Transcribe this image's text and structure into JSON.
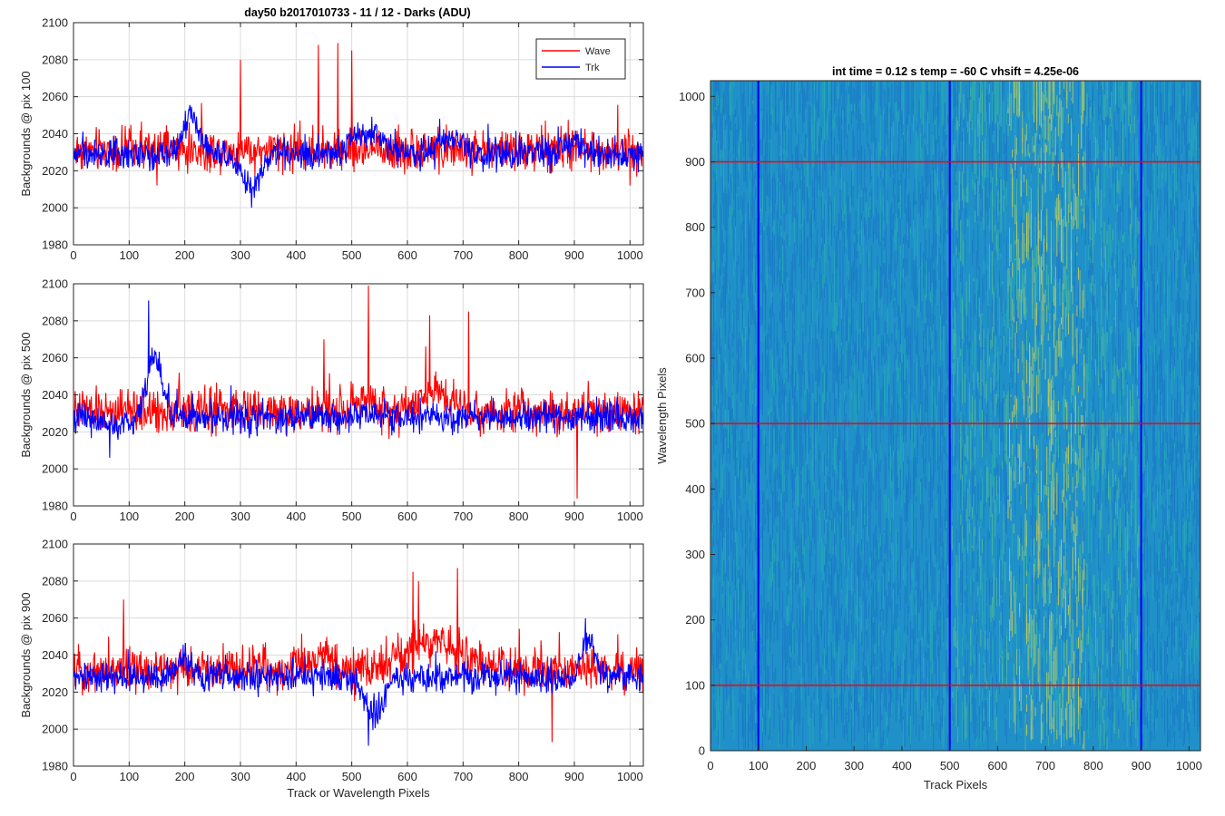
{
  "figure": {
    "title": "day50 b2017010733 - 11 / 12 - Darks (ADU)"
  },
  "chart_data": [
    {
      "type": "line",
      "id": "panel-1",
      "ylabel": "Backgrounds @ pix 100",
      "xlabel": "",
      "xlim": [
        0,
        1024
      ],
      "ylim": [
        1980,
        2100
      ],
      "xticks": [
        0,
        100,
        200,
        300,
        400,
        500,
        600,
        700,
        800,
        900,
        1000
      ],
      "yticks": [
        1980,
        2000,
        2020,
        2040,
        2060,
        2080,
        2100
      ],
      "grid": true,
      "legend": {
        "position": "top-right",
        "entries": [
          "Wave",
          "Trk"
        ]
      },
      "series": [
        {
          "name": "Wave",
          "color": "#ff0000",
          "baseline": 2031,
          "noise": 7,
          "bumps": [],
          "spikes": [
            [
              440,
              2088
            ],
            [
              475,
              2089
            ],
            [
              500,
              2085
            ],
            [
              300,
              2080
            ]
          ],
          "dips": [
            [
              150,
              2012
            ],
            [
              1000,
              2012
            ]
          ]
        },
        {
          "name": "Trk",
          "color": "#0000ff",
          "baseline": 2029,
          "noise": 5,
          "bumps": [
            [
              210,
              20,
              22
            ],
            [
              320,
              25,
              -18
            ],
            [
              530,
              40,
              12
            ],
            [
              680,
              30,
              8
            ],
            [
              900,
              20,
              8
            ]
          ],
          "spikes": [],
          "dips": [
            [
              320,
              2000
            ]
          ]
        }
      ]
    },
    {
      "type": "line",
      "id": "panel-2",
      "ylabel": "Backgrounds @ pix 500",
      "xlabel": "",
      "xlim": [
        0,
        1024
      ],
      "ylim": [
        1980,
        2100
      ],
      "xticks": [
        0,
        100,
        200,
        300,
        400,
        500,
        600,
        700,
        800,
        900,
        1000
      ],
      "yticks": [
        1980,
        2000,
        2020,
        2040,
        2060,
        2080,
        2100
      ],
      "grid": true,
      "series": [
        {
          "name": "Wave",
          "color": "#ff0000",
          "baseline": 2031,
          "noise": 7,
          "bumps": [
            [
              650,
              40,
              12
            ],
            [
              520,
              30,
              6
            ]
          ],
          "spikes": [
            [
              530,
              2099
            ],
            [
              640,
              2083
            ],
            [
              710,
              2085
            ],
            [
              450,
              2070
            ]
          ],
          "dips": [
            [
              905,
              1984
            ]
          ]
        },
        {
          "name": "Trk",
          "color": "#0000ff",
          "baseline": 2028,
          "noise": 5,
          "bumps": [
            [
              145,
              18,
              35
            ],
            [
              80,
              30,
              -5
            ]
          ],
          "spikes": [
            [
              135,
              2091
            ]
          ],
          "dips": [
            [
              65,
              2006
            ]
          ]
        }
      ]
    },
    {
      "type": "line",
      "id": "panel-3",
      "ylabel": "Backgrounds @ pix 900",
      "xlabel": "Track or Wavelength Pixels",
      "xlim": [
        0,
        1024
      ],
      "ylim": [
        1980,
        2100
      ],
      "xticks": [
        0,
        100,
        200,
        300,
        400,
        500,
        600,
        700,
        800,
        900,
        1000
      ],
      "yticks": [
        1980,
        2000,
        2020,
        2040,
        2060,
        2080,
        2100
      ],
      "grid": true,
      "series": [
        {
          "name": "Wave",
          "color": "#ff0000",
          "baseline": 2032,
          "noise": 7,
          "bumps": [
            [
              650,
              70,
              15
            ],
            [
              450,
              40,
              6
            ]
          ],
          "spikes": [
            [
              610,
              2085
            ],
            [
              690,
              2087
            ],
            [
              620,
              2080
            ],
            [
              90,
              2070
            ]
          ],
          "dips": [
            [
              860,
              1993
            ]
          ]
        },
        {
          "name": "Trk",
          "color": "#0000ff",
          "baseline": 2028,
          "noise": 5,
          "bumps": [
            [
              540,
              25,
              -20
            ],
            [
              925,
              15,
              22
            ],
            [
              200,
              20,
              10
            ]
          ],
          "spikes": [],
          "dips": [
            [
              530,
              1991
            ]
          ]
        }
      ]
    },
    {
      "type": "heatmap",
      "id": "image-panel",
      "title": "int time = 0.12 s    temp = -60 C    vhsift = 4.25e-06",
      "xlabel": "Track Pixels",
      "ylabel": "Wavelength Pixels",
      "xlim": [
        0,
        1024
      ],
      "ylim": [
        0,
        1024
      ],
      "xticks": [
        0,
        100,
        200,
        300,
        400,
        500,
        600,
        700,
        800,
        900,
        1000
      ],
      "yticks": [
        0,
        100,
        200,
        300,
        400,
        500,
        600,
        700,
        800,
        900,
        1000
      ],
      "colormap": [
        "#1a78c7",
        "#1f91c8",
        "#27a9b6",
        "#4cb99a",
        "#8ec57a",
        "#c8cc5b"
      ],
      "bright_band": [
        620,
        780
      ],
      "vertical_lines": {
        "values": [
          100,
          500,
          900
        ],
        "color": "#0000ff"
      },
      "horizontal_lines": {
        "values": [
          100,
          500,
          900
        ],
        "color": "#ff0000"
      }
    }
  ]
}
